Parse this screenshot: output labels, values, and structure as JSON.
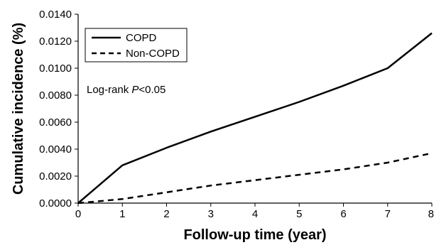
{
  "chart_data": {
    "type": "line",
    "xlabel": "Follow-up time (year)",
    "ylabel": "Cumulative incidence (%)",
    "xlim": [
      0,
      8
    ],
    "ylim": [
      0,
      0.014
    ],
    "x_ticks": [
      "0",
      "1",
      "2",
      "3",
      "4",
      "5",
      "6",
      "7",
      "8"
    ],
    "y_ticks": [
      "0.0000",
      "0.0020",
      "0.0040",
      "0.0060",
      "0.0080",
      "0.0100",
      "0.0120",
      "0.0140"
    ],
    "grid": false,
    "legend_position": "top-left",
    "annotation": {
      "prefix": "Log-rank ",
      "italic": "P",
      "suffix": "<0.05"
    },
    "series": [
      {
        "name": "COPD",
        "style": "solid",
        "color": "#000000",
        "x": [
          0,
          1,
          2,
          3,
          4,
          5,
          6,
          7,
          8
        ],
        "y": [
          0.0,
          0.0028,
          0.0041,
          0.0053,
          0.0064,
          0.0075,
          0.0087,
          0.01,
          0.0126
        ]
      },
      {
        "name": "Non-COPD",
        "style": "dashed",
        "color": "#000000",
        "x": [
          0,
          1,
          2,
          3,
          4,
          5,
          6,
          7,
          8
        ],
        "y": [
          0.0,
          0.0003,
          0.0008,
          0.0013,
          0.0017,
          0.0021,
          0.0025,
          0.003,
          0.0037
        ]
      }
    ]
  }
}
